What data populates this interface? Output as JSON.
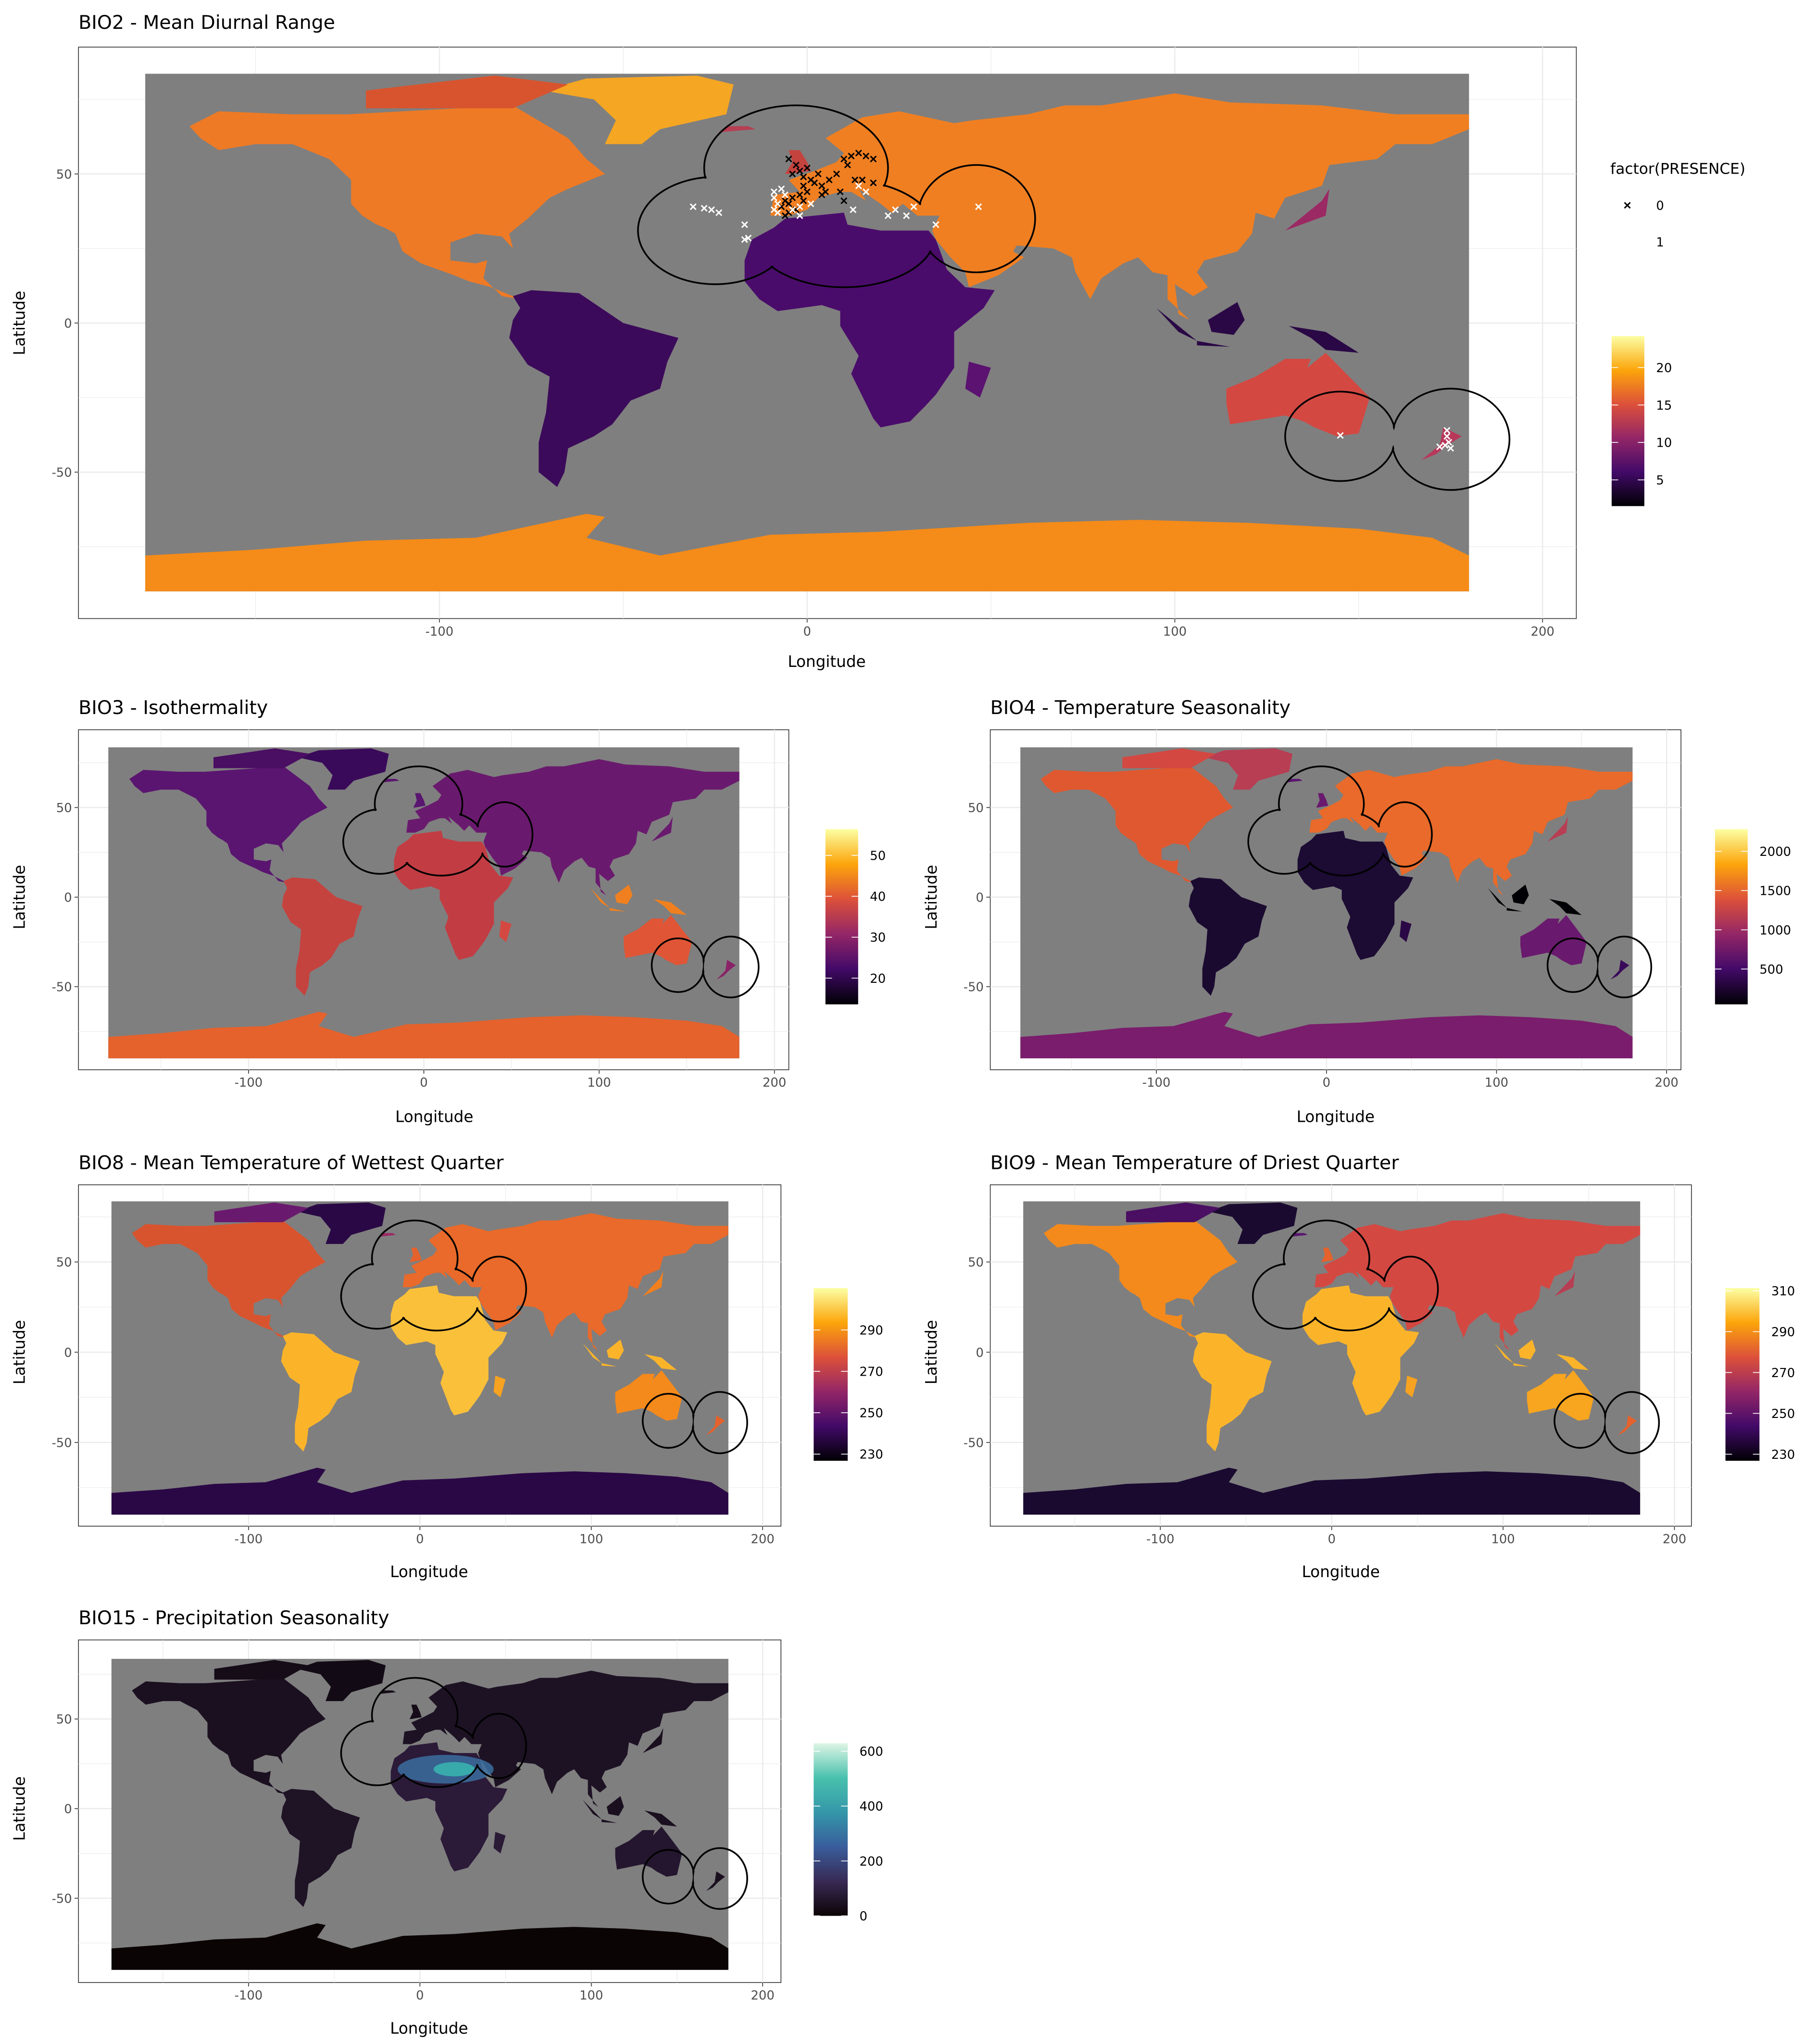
{
  "presence_legend": {
    "title": "factor(PRESENCE)",
    "entries": [
      {
        "label": "0",
        "shape": "cross",
        "color": "#000000"
      },
      {
        "label": "1",
        "shape": "cross",
        "color": "#ffffff"
      }
    ]
  },
  "study_area_buffers": [
    {
      "lon": -25,
      "lat": 31,
      "rx_deg": 21,
      "ry_deg": 18
    },
    {
      "lon": -3,
      "lat": 52,
      "rx_deg": 25,
      "ry_deg": 21
    },
    {
      "lon": 10,
      "lat": 30,
      "rx_deg": 25,
      "ry_deg": 18
    },
    {
      "lon": 46,
      "lat": 35,
      "rx_deg": 16,
      "ry_deg": 18
    },
    {
      "lon": 145,
      "lat": -38,
      "rx_deg": 15,
      "ry_deg": 15
    },
    {
      "lon": 175,
      "lat": -39,
      "rx_deg": 16,
      "ry_deg": 17
    }
  ],
  "chart_data": [
    {
      "type": "heatmap",
      "title": "BIO2 - Mean Diurnal Range",
      "xlabel": "Longitude",
      "ylabel": "Latitude",
      "xticks": [
        -100,
        0,
        100,
        200
      ],
      "yticks": [
        -50,
        0,
        50
      ],
      "xlim": [
        -198,
        209
      ],
      "ylim": [
        -99,
        93
      ],
      "extent": {
        "lon": [
          -180,
          180
        ],
        "lat": [
          -90,
          83.6
        ]
      },
      "grid": true,
      "background_color": "#7f7f7f",
      "colorbar": {
        "colormap": "inferno",
        "colors": [
          "#000004",
          "#420a68",
          "#932667",
          "#dd513a",
          "#fca50a",
          "#fcffa4"
        ],
        "range": [
          1.5,
          24.2
        ],
        "ticks": [
          5,
          10,
          15,
          20
        ]
      },
      "legend_position": "right",
      "points": {
        "0": [
          [
            -5,
            55
          ],
          [
            -3,
            53
          ],
          [
            -2,
            51
          ],
          [
            0,
            52
          ],
          [
            -4,
            50
          ],
          [
            -1,
            49
          ],
          [
            1,
            48
          ],
          [
            3,
            50
          ],
          [
            2,
            47
          ],
          [
            4,
            46
          ],
          [
            5,
            44
          ],
          [
            -1,
            46
          ],
          [
            0,
            44
          ],
          [
            -2,
            43
          ],
          [
            -4,
            42
          ],
          [
            -6,
            41
          ],
          [
            -5,
            40
          ],
          [
            -7,
            39
          ],
          [
            -3,
            38
          ],
          [
            -5,
            37
          ],
          [
            -6,
            36
          ],
          [
            6,
            48
          ],
          [
            8,
            50
          ],
          [
            10,
            55
          ],
          [
            12,
            56
          ],
          [
            14,
            57
          ],
          [
            16,
            56
          ],
          [
            18,
            55
          ],
          [
            11,
            53
          ],
          [
            13,
            48
          ],
          [
            15,
            48
          ],
          [
            18,
            47
          ],
          [
            9,
            44
          ],
          [
            10,
            41
          ],
          [
            -1,
            41
          ],
          [
            4,
            43
          ]
        ],
        "1": [
          [
            -31,
            39
          ],
          [
            -28,
            38.5
          ],
          [
            -26,
            38
          ],
          [
            -24,
            37
          ],
          [
            -17,
            33
          ],
          [
            -17,
            28
          ],
          [
            -16,
            28.5
          ],
          [
            -9,
            44
          ],
          [
            -9,
            42
          ],
          [
            -8,
            40
          ],
          [
            -9,
            38
          ],
          [
            -8,
            37
          ],
          [
            -4,
            38
          ],
          [
            -2,
            39
          ],
          [
            -6,
            43
          ],
          [
            -7,
            45
          ],
          [
            -2,
            36
          ],
          [
            1,
            40
          ],
          [
            12.5,
            38
          ],
          [
            14,
            46
          ],
          [
            16,
            44
          ],
          [
            24,
            38
          ],
          [
            27,
            36
          ],
          [
            22,
            36
          ],
          [
            29,
            39
          ],
          [
            35,
            33
          ],
          [
            46.6,
            39
          ],
          [
            145,
            -37.7
          ],
          [
            174,
            -36
          ],
          [
            174,
            -38
          ],
          [
            174.5,
            -40
          ],
          [
            173.5,
            -41
          ],
          [
            175,
            -42
          ],
          [
            172,
            -41.5
          ]
        ]
      }
    },
    {
      "type": "heatmap",
      "title": "BIO3 - Isothermality",
      "xlabel": "Longitude",
      "ylabel": "Latitude",
      "xticks": [
        -100,
        0,
        100,
        200
      ],
      "yticks": [
        -50,
        0,
        50
      ],
      "extent": {
        "lon": [
          -180,
          180
        ],
        "lat": [
          -90,
          83.6
        ]
      },
      "grid": true,
      "background_color": "#7f7f7f",
      "colorbar": {
        "colormap": "inferno",
        "colors": [
          "#000004",
          "#420a68",
          "#932667",
          "#dd513a",
          "#fca50a",
          "#fcffa4"
        ],
        "range": [
          13.6,
          56.4
        ],
        "ticks": [
          20,
          30,
          40,
          50
        ]
      },
      "legend_position": "right"
    },
    {
      "type": "heatmap",
      "title": "BIO4 - Temperature Seasonality",
      "xlabel": "Longitude",
      "ylabel": "Latitude",
      "xticks": [
        -100,
        0,
        100,
        200
      ],
      "yticks": [
        -50,
        0,
        50
      ],
      "extent": {
        "lon": [
          -180,
          180
        ],
        "lat": [
          -90,
          83.6
        ]
      },
      "grid": true,
      "background_color": "#7f7f7f",
      "colorbar": {
        "colormap": "inferno",
        "colors": [
          "#000004",
          "#420a68",
          "#932667",
          "#dd513a",
          "#fca50a",
          "#fcffa4"
        ],
        "range": [
          50,
          2283
        ],
        "ticks": [
          500,
          1000,
          1500,
          2000
        ]
      },
      "legend_position": "right"
    },
    {
      "type": "heatmap",
      "title": "BIO8 - Mean Temperature of Wettest Quarter",
      "xlabel": "Longitude",
      "ylabel": "Latitude",
      "xticks": [
        -100,
        0,
        100,
        200
      ],
      "yticks": [
        -50,
        0,
        50
      ],
      "extent": {
        "lon": [
          -180,
          180
        ],
        "lat": [
          -90,
          83.6
        ]
      },
      "grid": true,
      "background_color": "#7f7f7f",
      "colorbar": {
        "colormap": "inferno",
        "colors": [
          "#000004",
          "#420a68",
          "#932667",
          "#dd513a",
          "#fca50a",
          "#fcffa4"
        ],
        "range": [
          226.8,
          310.2
        ],
        "ticks": [
          230,
          250,
          270,
          290
        ]
      },
      "legend_position": "right"
    },
    {
      "type": "heatmap",
      "title": "BIO9 - Mean Temperature of Driest Quarter",
      "xlabel": "Longitude",
      "ylabel": "Latitude",
      "xticks": [
        -100,
        0,
        100,
        200
      ],
      "yticks": [
        -50,
        0,
        50
      ],
      "extent": {
        "lon": [
          -180,
          180
        ],
        "lat": [
          -90,
          83.6
        ]
      },
      "grid": true,
      "background_color": "#7f7f7f",
      "colorbar": {
        "colormap": "inferno",
        "colors": [
          "#000004",
          "#420a68",
          "#932667",
          "#dd513a",
          "#fca50a",
          "#fcffa4"
        ],
        "range": [
          226.8,
          311.3
        ],
        "ticks": [
          230,
          250,
          270,
          290,
          310
        ]
      },
      "legend_position": "right"
    },
    {
      "type": "heatmap",
      "title": "BIO15 - Precipitation Seasonality",
      "xlabel": "Longitude",
      "ylabel": "Latitude",
      "xticks": [
        -100,
        0,
        100,
        200
      ],
      "yticks": [
        -50,
        0,
        50
      ],
      "extent": {
        "lon": [
          -180,
          180
        ],
        "lat": [
          -90,
          83.6
        ]
      },
      "grid": true,
      "background_color": "#7f7f7f",
      "colorbar": {
        "colormap": "mako",
        "colors": [
          "#0b0405",
          "#382a54",
          "#395d9c",
          "#3497a9",
          "#49c1ad",
          "#def5e5"
        ],
        "range": [
          0,
          629
        ],
        "ticks": [
          0,
          200,
          400,
          600
        ]
      },
      "legend_position": "right"
    }
  ]
}
